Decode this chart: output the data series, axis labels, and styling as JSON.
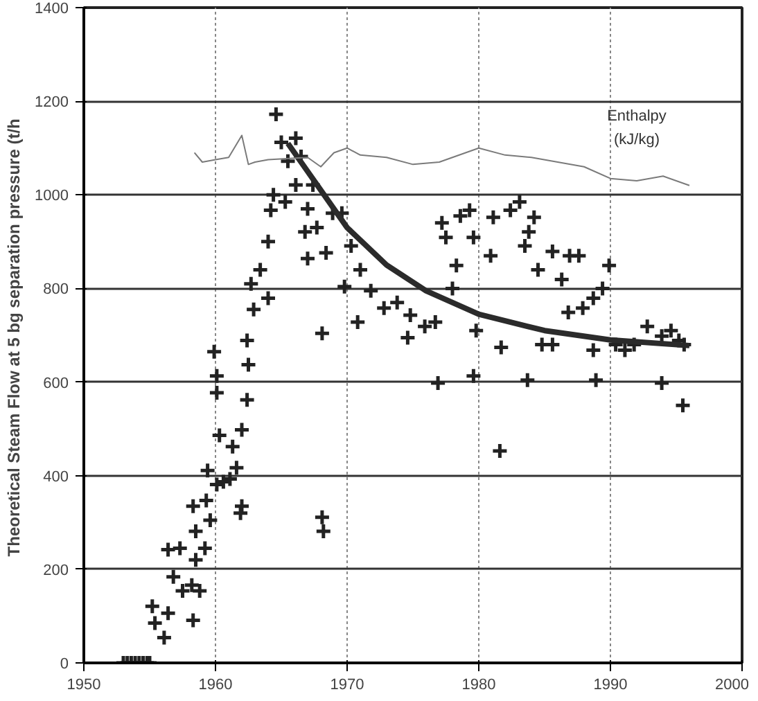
{
  "chart_data": {
    "type": "scatter",
    "ylabel": "Theoretical Steam Flow at 5 bg separation pressure  (t/h",
    "xlim": [
      1950,
      2000
    ],
    "xticks": [
      1950,
      1960,
      1970,
      1980,
      1990,
      2000
    ],
    "ylim": [
      0,
      1400
    ],
    "yticks": [
      0,
      200,
      400,
      600,
      800,
      1000,
      1200,
      1400
    ],
    "grid": true,
    "series": [
      {
        "marker": "cross",
        "color": "#222222",
        "x": [
          1953.0,
          1953.3,
          1953.6,
          1953.9,
          1954.2,
          1954.5,
          1954.8,
          1955.0,
          1955.2,
          1955.4,
          1956.1,
          1956.4,
          1956.4,
          1957.3,
          1956.8,
          1957.5,
          1958.2,
          1958.3,
          1958.8,
          1958.5,
          1958.5,
          1958.3,
          1959.3,
          1959.2,
          1959.6,
          1959.4,
          1960.1,
          1960.3,
          1960.1,
          1960.1,
          1960.6,
          1961.1,
          1961.3,
          1961.6,
          1962.0,
          1961.9,
          1962.0,
          1962.4,
          1968.1,
          1968.2,
          1959.9,
          1962.4,
          1962.5,
          1962.9,
          1962.7,
          1963.4,
          1964.0,
          1964.0,
          1964.2,
          1964.4,
          1964.6,
          1965.0,
          1965.5,
          1966.1,
          1965.3,
          1966.1,
          1966.5,
          1967.4,
          1967.0,
          1966.8,
          1967.0,
          1968.4,
          1968.1,
          1967.7,
          1968.9,
          1969.6,
          1969.8,
          1970.8,
          1970.3,
          1971.0,
          1971.8,
          1972.8,
          1973.8,
          1974.6,
          1974.8,
          1975.9,
          1976.7,
          1976.9,
          1977.2,
          1977.5,
          1978.6,
          1979.3,
          1978.3,
          1978.0,
          1979.6,
          1979.8,
          1979.6,
          1981.1,
          1980.9,
          1981.7,
          1982.4,
          1983.1,
          1983.5,
          1983.8,
          1984.2,
          1984.5,
          1983.7,
          1984.8,
          1985.6,
          1985.6,
          1986.3,
          1986.9,
          1987.6,
          1986.8,
          1987.9,
          1988.7,
          1989.4,
          1989.9,
          1988.9,
          1988.7,
          1990.4,
          1991.1,
          1991.8,
          1992.8,
          1993.9,
          1994.6,
          1995.2,
          1995.6,
          1993.9,
          1995.5,
          1981.6
        ],
        "values": [
          0,
          0,
          0,
          0,
          0,
          0,
          0,
          0,
          121,
          85,
          54,
          106,
          242,
          245,
          184,
          154,
          166,
          91,
          154,
          220,
          281,
          335,
          347,
          245,
          305,
          411,
          381,
          486,
          613,
          577,
          387,
          393,
          462,
          417,
          335,
          320,
          498,
          562,
          311,
          281,
          665,
          689,
          637,
          755,
          810,
          840,
          900,
          779,
          967,
          1000,
          1172,
          1112,
          1072,
          1121,
          985,
          1021,
          1082,
          1021,
          970,
          921,
          864,
          876,
          704,
          930,
          961,
          961,
          804,
          728,
          891,
          840,
          795,
          758,
          770,
          695,
          743,
          719,
          728,
          598,
          940,
          909,
          955,
          967,
          849,
          800,
          909,
          710,
          613,
          952,
          870,
          674,
          967,
          985,
          891,
          921,
          952,
          840,
          604,
          680,
          680,
          879,
          819,
          870,
          870,
          749,
          758,
          779,
          800,
          849,
          604,
          668,
          680,
          668,
          680,
          719,
          698,
          710,
          689,
          680,
          598,
          550,
          453
        ]
      },
      {
        "type": "line",
        "marker": "none",
        "line_style": "solid",
        "color": "#2b2b2b",
        "x": [
          1965.5,
          1967,
          1970,
          1973,
          1976,
          1980,
          1985,
          1990,
          1996
        ],
        "values": [
          1110,
          1050,
          930,
          850,
          795,
          745,
          710,
          690,
          678
        ]
      },
      {
        "type": "line",
        "marker": "none",
        "line_style": "solid",
        "name": "Enthalpy\n(kJ/kg)",
        "color": "#7a7a7a",
        "x": [
          1958.4,
          1959,
          1960,
          1961,
          1962,
          1962.5,
          1963,
          1964,
          1967,
          1968,
          1969,
          1970,
          1971,
          1973,
          1975,
          1977,
          1979,
          1980,
          1982,
          1984,
          1986,
          1988,
          1990,
          1992,
          1994,
          1996
        ],
        "values": [
          1090,
          1070,
          1075,
          1080,
          1127,
          1065,
          1070,
          1075,
          1080,
          1060,
          1090,
          1100,
          1085,
          1080,
          1065,
          1070,
          1090,
          1100,
          1085,
          1080,
          1070,
          1060,
          1035,
          1030,
          1040,
          1020
        ]
      }
    ]
  }
}
